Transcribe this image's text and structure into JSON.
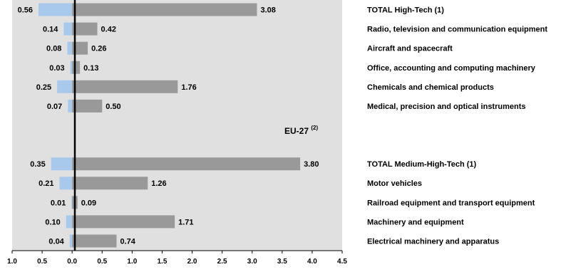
{
  "chart_data": {
    "type": "bar",
    "orientation": "horizontal-diverging",
    "annotation": {
      "main": "EU-27",
      "superscript": "(2)"
    },
    "xlim": [
      -1.0,
      4.5
    ],
    "xticks": [
      "1.0",
      "0.5",
      "0.0",
      "0.5",
      "1.0",
      "1.5",
      "2.0",
      "2.5",
      "3.0",
      "3.5",
      "4.0",
      "4.5"
    ],
    "colors": {
      "left": "#a9c9ec",
      "right": "#999999",
      "plot_bg": "#e0e0e0",
      "zero_line": "#000000"
    },
    "rows": [
      {
        "category": "TOTAL High-Tech (1)",
        "left": 0.56,
        "left_label": "0.56",
        "right": 3.08,
        "right_label": "3.08"
      },
      {
        "category": "Radio, television and communication equipment",
        "left": 0.14,
        "left_label": "0.14",
        "right": 0.42,
        "right_label": "0.42"
      },
      {
        "category": "Aircraft and spacecraft",
        "left": 0.08,
        "left_label": "0.08",
        "right": 0.26,
        "right_label": "0.26"
      },
      {
        "category": "Office, accounting and computing machinery",
        "left": 0.03,
        "left_label": "0.03",
        "right": 0.13,
        "right_label": "0.13"
      },
      {
        "category": "Chemicals and chemical products",
        "left": 0.25,
        "left_label": "0.25",
        "right": 1.76,
        "right_label": "1.76"
      },
      {
        "category": "Medical, precision and optical instruments",
        "left": 0.07,
        "left_label": "0.07",
        "right": 0.5,
        "right_label": "0.50"
      },
      null,
      null,
      {
        "category": "TOTAL Medium-High-Tech (1)",
        "left": 0.35,
        "left_label": "0.35",
        "right": 3.8,
        "right_label": "3.80"
      },
      {
        "category": "Motor vehicles",
        "left": 0.21,
        "left_label": "0.21",
        "right": 1.26,
        "right_label": "1.26"
      },
      {
        "category": "Railroad equipment and transport equipment",
        "left": 0.01,
        "left_label": "0.01",
        "right": 0.09,
        "right_label": "0.09"
      },
      {
        "category": "Machinery and equipment",
        "left": 0.1,
        "left_label": "0.10",
        "right": 1.71,
        "right_label": "1.71"
      },
      {
        "category": "Electrical machinery and apparatus",
        "left": 0.04,
        "left_label": "0.04",
        "right": 0.74,
        "right_label": "0.74"
      }
    ]
  }
}
